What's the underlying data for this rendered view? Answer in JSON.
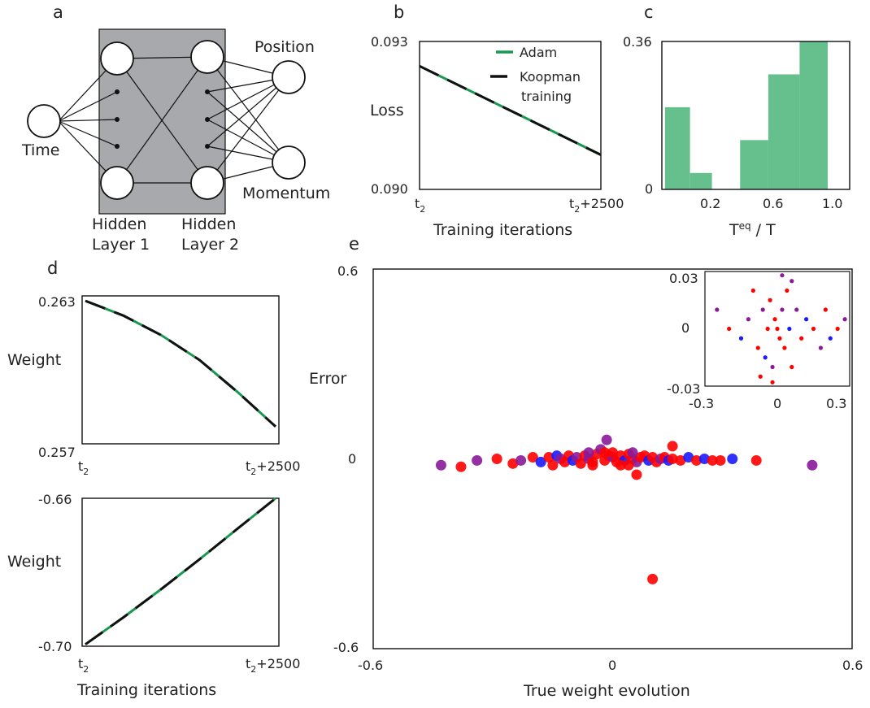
{
  "panel_letters": {
    "a": "a",
    "b": "b",
    "c": "c",
    "d": "d",
    "e": "e"
  },
  "panel_a": {
    "input_label": "Time",
    "hidden1_label_line1": "Hidden",
    "hidden1_label_line2": "Layer 1",
    "hidden2_label_line1": "Hidden",
    "hidden2_label_line2": "Layer 2",
    "output_labels": [
      "Position",
      "Momentum"
    ],
    "colors": {
      "hidden_box": "#a7a9ac"
    }
  },
  "panel_b": {
    "ytick_top": "0.093",
    "ytick_bottom": "0.090",
    "ylabel": "Loss",
    "xtick_left_base": "t",
    "xtick_left_sub": "2",
    "xtick_right_base": "t",
    "xtick_right_sub": "2",
    "xtick_right_tail": "+2500",
    "xlabel": "Training iterations",
    "legend": [
      "Adam",
      "Koopman",
      "training"
    ]
  },
  "panel_c": {
    "ytick_top": "0.36",
    "ytick_bottom": "0",
    "xticks": [
      "0.2",
      "0.6",
      "1.0"
    ],
    "xlabel_base": "T",
    "xlabel_sup": "eq",
    "xlabel_tail": " / T"
  },
  "panel_d": {
    "top_ytick_top": "0.263",
    "top_ytick_bottom": "0.257",
    "top_ylabel": "Weight",
    "bottom_ytick_top": "-0.66",
    "bottom_ytick_bottom": "-0.70",
    "bottom_ylabel": "Weight",
    "xtick_left_base": "t",
    "xtick_left_sub": "2",
    "xtick_right_base": "t",
    "xtick_right_sub": "2",
    "xtick_right_tail": "+2500",
    "xlabel": "Training iterations"
  },
  "panel_e": {
    "ytick_top": "0.6",
    "ytick_mid": "0",
    "ytick_bottom": "-0.6",
    "xtick_left": "-0.6",
    "xtick_mid": "0",
    "xtick_right": "0.6",
    "ylabel": "Error",
    "xlabel": "True weight evolution",
    "inset_yticks": [
      "0.03",
      "0",
      "-0.03"
    ],
    "inset_xticks": [
      "-0.3",
      "0",
      "0.3"
    ]
  },
  "colors": {
    "adam_green": "#1a9850",
    "koopman_black": "#111111",
    "hist_green": "#66c08e",
    "scatter_red": "#ff0000",
    "scatter_blue": "#1a1aff",
    "scatter_purple": "#8a1a9a"
  },
  "chart_data": [
    {
      "type": "line",
      "panel": "b",
      "ylabel": "Loss",
      "xlabel": "Training iterations",
      "ylim": [
        0.09,
        0.093
      ],
      "x": [
        "t2",
        "t2+2500"
      ],
      "series": [
        {
          "name": "Adam",
          "x": [
            0,
            2500
          ],
          "values": [
            0.0925,
            0.0907
          ]
        },
        {
          "name": "Koopman training",
          "x": [
            0,
            2500
          ],
          "values": [
            0.0925,
            0.0907
          ]
        }
      ]
    },
    {
      "type": "bar",
      "panel": "c",
      "ylim": [
        0,
        0.36
      ],
      "xlim": [
        0,
        1.2
      ],
      "bins": [
        {
          "x0": 0.02,
          "x1": 0.18,
          "value": 0.2
        },
        {
          "x0": 0.18,
          "x1": 0.32,
          "value": 0.04
        },
        {
          "x0": 0.5,
          "x1": 0.68,
          "value": 0.12
        },
        {
          "x0": 0.68,
          "x1": 0.88,
          "value": 0.28
        },
        {
          "x0": 0.88,
          "x1": 1.06,
          "value": 0.36
        }
      ]
    },
    {
      "type": "line",
      "panel": "d-top",
      "ylabel": "Weight",
      "ylim": [
        0.257,
        0.263
      ],
      "series": [
        {
          "name": "Adam",
          "x": [
            0,
            500,
            1000,
            1500,
            2000,
            2500
          ],
          "values": [
            0.2628,
            0.2622,
            0.2614,
            0.2604,
            0.2591,
            0.2577
          ]
        },
        {
          "name": "Koopman training",
          "x": [
            0,
            500,
            1000,
            1500,
            2000,
            2500
          ],
          "values": [
            0.2628,
            0.2622,
            0.2614,
            0.2604,
            0.2591,
            0.2577
          ]
        }
      ]
    },
    {
      "type": "line",
      "panel": "d-bottom",
      "ylabel": "Weight",
      "xlabel": "Training iterations",
      "ylim": [
        -0.7,
        -0.66
      ],
      "series": [
        {
          "name": "Adam",
          "x": [
            0,
            500,
            1000,
            1500,
            2000,
            2500
          ],
          "values": [
            -0.6995,
            -0.6922,
            -0.6845,
            -0.6765,
            -0.6682,
            -0.66
          ]
        },
        {
          "name": "Koopman training",
          "x": [
            0,
            500,
            1000,
            1500,
            2000,
            2500
          ],
          "values": [
            -0.6995,
            -0.6922,
            -0.6845,
            -0.6765,
            -0.6682,
            -0.66
          ]
        }
      ]
    },
    {
      "type": "scatter",
      "panel": "e",
      "xlabel": "True weight evolution",
      "ylabel": "Error",
      "xlim": [
        -0.6,
        0.6
      ],
      "ylim": [
        -0.6,
        0.6
      ],
      "points": [
        [
          -0.43,
          -0.02,
          "purple"
        ],
        [
          -0.38,
          -0.025,
          "red"
        ],
        [
          -0.34,
          -0.005,
          "purple"
        ],
        [
          -0.29,
          0.0,
          "red"
        ],
        [
          -0.25,
          -0.015,
          "red"
        ],
        [
          -0.23,
          -0.005,
          "purple"
        ],
        [
          -0.2,
          0.005,
          "red"
        ],
        [
          -0.18,
          -0.01,
          "blue"
        ],
        [
          -0.16,
          0.005,
          "red"
        ],
        [
          -0.15,
          -0.02,
          "red"
        ],
        [
          -0.14,
          0.01,
          "blue"
        ],
        [
          -0.13,
          0.0,
          "purple"
        ],
        [
          -0.12,
          -0.01,
          "red"
        ],
        [
          -0.11,
          0.01,
          "red"
        ],
        [
          -0.1,
          -0.005,
          "blue"
        ],
        [
          -0.09,
          0.005,
          "purple"
        ],
        [
          -0.08,
          -0.015,
          "red"
        ],
        [
          -0.07,
          0.01,
          "red"
        ],
        [
          -0.06,
          0.0,
          "purple"
        ],
        [
          -0.05,
          -0.01,
          "red"
        ],
        [
          -0.04,
          0.015,
          "red"
        ],
        [
          -0.03,
          0.03,
          "purple"
        ],
        [
          -0.02,
          -0.005,
          "red"
        ],
        [
          -0.01,
          0.01,
          "red"
        ],
        [
          0.0,
          0.005,
          "purple"
        ],
        [
          0.01,
          -0.01,
          "red"
        ],
        [
          0.02,
          0.01,
          "red"
        ],
        [
          0.03,
          -0.005,
          "blue"
        ],
        [
          0.04,
          0.015,
          "red"
        ],
        [
          0.05,
          0.0,
          "red"
        ],
        [
          0.06,
          -0.01,
          "purple"
        ],
        [
          0.07,
          0.005,
          "red"
        ],
        [
          0.08,
          0.01,
          "red"
        ],
        [
          0.09,
          -0.005,
          "blue"
        ],
        [
          0.1,
          0.005,
          "red"
        ],
        [
          0.11,
          -0.01,
          "red"
        ],
        [
          0.12,
          0.0,
          "purple"
        ],
        [
          0.13,
          0.005,
          "red"
        ],
        [
          0.14,
          -0.005,
          "blue"
        ],
        [
          0.15,
          0.0,
          "red"
        ],
        [
          0.17,
          -0.005,
          "red"
        ],
        [
          0.19,
          0.005,
          "blue"
        ],
        [
          0.21,
          -0.005,
          "red"
        ],
        [
          0.23,
          0.0,
          "blue"
        ],
        [
          0.25,
          -0.005,
          "red"
        ],
        [
          0.27,
          -0.005,
          "red"
        ],
        [
          0.3,
          0.0,
          "blue"
        ],
        [
          0.36,
          -0.005,
          "red"
        ],
        [
          0.5,
          -0.02,
          "purple"
        ],
        [
          -0.015,
          0.06,
          "purple"
        ],
        [
          0.06,
          -0.05,
          "red"
        ],
        [
          0.15,
          0.04,
          "red"
        ],
        [
          -0.06,
          0.02,
          "purple"
        ],
        [
          0.04,
          -0.02,
          "red"
        ],
        [
          0.1,
          -0.38,
          "red"
        ],
        [
          0.0,
          0.02,
          "red"
        ],
        [
          -0.02,
          0.02,
          "red"
        ],
        [
          0.02,
          -0.02,
          "red"
        ],
        [
          0.05,
          0.02,
          "purple"
        ],
        [
          -0.05,
          -0.02,
          "red"
        ]
      ],
      "inset": {
        "xlim": [
          -0.3,
          0.3
        ],
        "ylim": [
          -0.03,
          0.03
        ],
        "points": [
          [
            -0.25,
            0.01,
            "purple"
          ],
          [
            -0.2,
            0.0,
            "red"
          ],
          [
            -0.15,
            -0.005,
            "blue"
          ],
          [
            -0.12,
            0.005,
            "purple"
          ],
          [
            -0.1,
            0.02,
            "red"
          ],
          [
            -0.08,
            -0.01,
            "red"
          ],
          [
            -0.06,
            0.01,
            "purple"
          ],
          [
            -0.05,
            -0.015,
            "blue"
          ],
          [
            -0.04,
            0.0,
            "red"
          ],
          [
            -0.03,
            0.015,
            "red"
          ],
          [
            -0.02,
            -0.02,
            "purple"
          ],
          [
            -0.01,
            0.005,
            "red"
          ],
          [
            0.0,
            0.0,
            "red"
          ],
          [
            0.01,
            -0.005,
            "red"
          ],
          [
            0.02,
            0.01,
            "purple"
          ],
          [
            0.03,
            -0.01,
            "red"
          ],
          [
            0.04,
            0.02,
            "red"
          ],
          [
            0.05,
            0.0,
            "blue"
          ],
          [
            0.06,
            -0.02,
            "red"
          ],
          [
            0.08,
            0.01,
            "purple"
          ],
          [
            0.1,
            -0.005,
            "red"
          ],
          [
            0.12,
            0.005,
            "blue"
          ],
          [
            0.15,
            0.0,
            "red"
          ],
          [
            0.18,
            -0.01,
            "purple"
          ],
          [
            0.2,
            0.01,
            "red"
          ],
          [
            0.22,
            -0.005,
            "blue"
          ],
          [
            0.25,
            0.0,
            "red"
          ],
          [
            0.28,
            0.005,
            "purple"
          ],
          [
            0.02,
            0.028,
            "purple"
          ],
          [
            -0.02,
            -0.028,
            "red"
          ],
          [
            0.06,
            0.025,
            "purple"
          ],
          [
            -0.07,
            -0.025,
            "red"
          ]
        ]
      }
    }
  ]
}
